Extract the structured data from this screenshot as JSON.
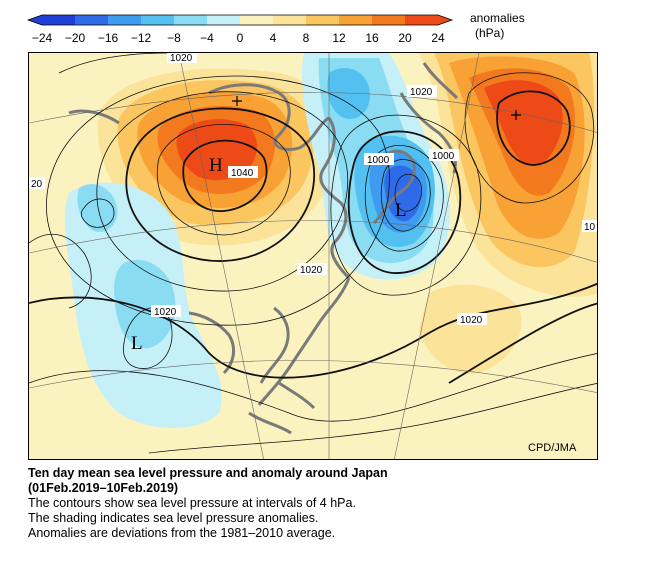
{
  "legend": {
    "ticks": [
      "−24",
      "−20",
      "−16",
      "−12",
      "−8",
      "−4",
      "0",
      "4",
      "8",
      "12",
      "16",
      "20",
      "24"
    ],
    "title": "anomalies",
    "unit": "(hPa)",
    "colors": [
      "#1f3fd6",
      "#2f6be8",
      "#3e9cf0",
      "#52c0f0",
      "#8adcf2",
      "#c6f0f8",
      "#fbf3bf",
      "#fce39a",
      "#fbc560",
      "#f8a235",
      "#f3791f",
      "#ee4a17"
    ]
  },
  "map": {
    "isobar_labels": [
      "1020",
      "1020",
      "1000",
      "1000",
      "1040",
      "20",
      "1020",
      "1020",
      "1020",
      "10"
    ],
    "center_marks": [
      "H",
      "L",
      "L"
    ],
    "credit": "CPD/JMA"
  },
  "caption": {
    "title_line1": "Ten day mean sea level pressure and anomaly around Japan",
    "title_line2": "(01Feb.2019–10Feb.2019)",
    "line3": "The contours show sea level pressure at intervals of 4 hPa.",
    "line4": "The shading indicates sea level pressure anomalies.",
    "line5": "Anomalies are deviations from the 1981–2010 average."
  }
}
